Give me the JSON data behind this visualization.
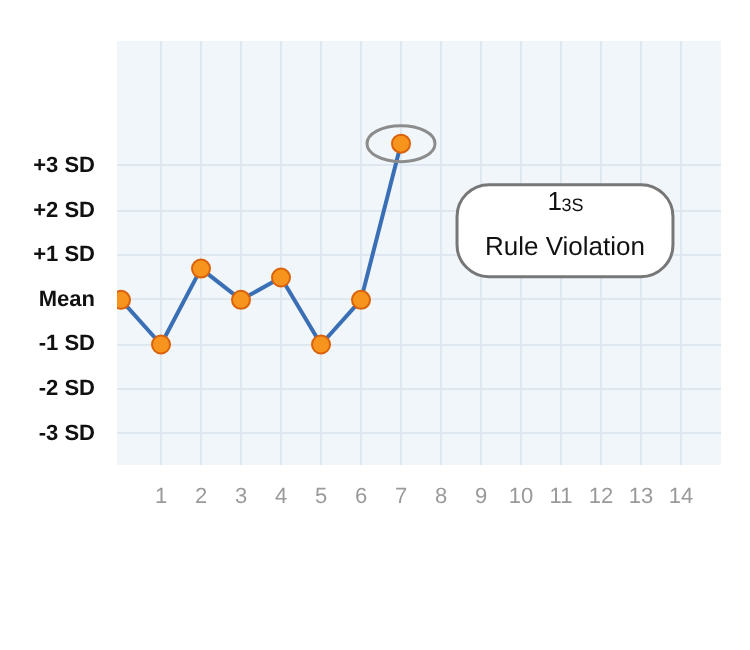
{
  "chart_data": {
    "type": "line",
    "x": [
      0,
      1,
      2,
      3,
      4,
      5,
      6,
      7
    ],
    "series": [
      {
        "color": "#3a6fb5",
        "values": [
          0,
          -1,
          0.7,
          0,
          0.5,
          -1,
          0,
          3.5
        ]
      }
    ],
    "xlim": [
      -0.1,
      15
    ],
    "xticks": [
      1,
      2,
      3,
      4,
      5,
      6,
      7,
      8,
      9,
      10,
      11,
      12,
      13,
      14
    ],
    "ylim": [
      -3.7,
      5.8
    ],
    "yticks": [
      {
        "value": 3,
        "label": "+3 SD"
      },
      {
        "value": 2,
        "label": "+2 SD"
      },
      {
        "value": 1,
        "label": "+1 SD"
      },
      {
        "value": 0,
        "label": "Mean"
      },
      {
        "value": -1,
        "label": "-1 SD"
      },
      {
        "value": -2,
        "label": "-2 SD"
      },
      {
        "value": -3,
        "label": "-3 SD"
      }
    ],
    "annotations": [
      "1$_{3S}$",
      "Rule Violation"
    ],
    "grid": true,
    "marker": "circle",
    "line_style": "solid"
  }
}
